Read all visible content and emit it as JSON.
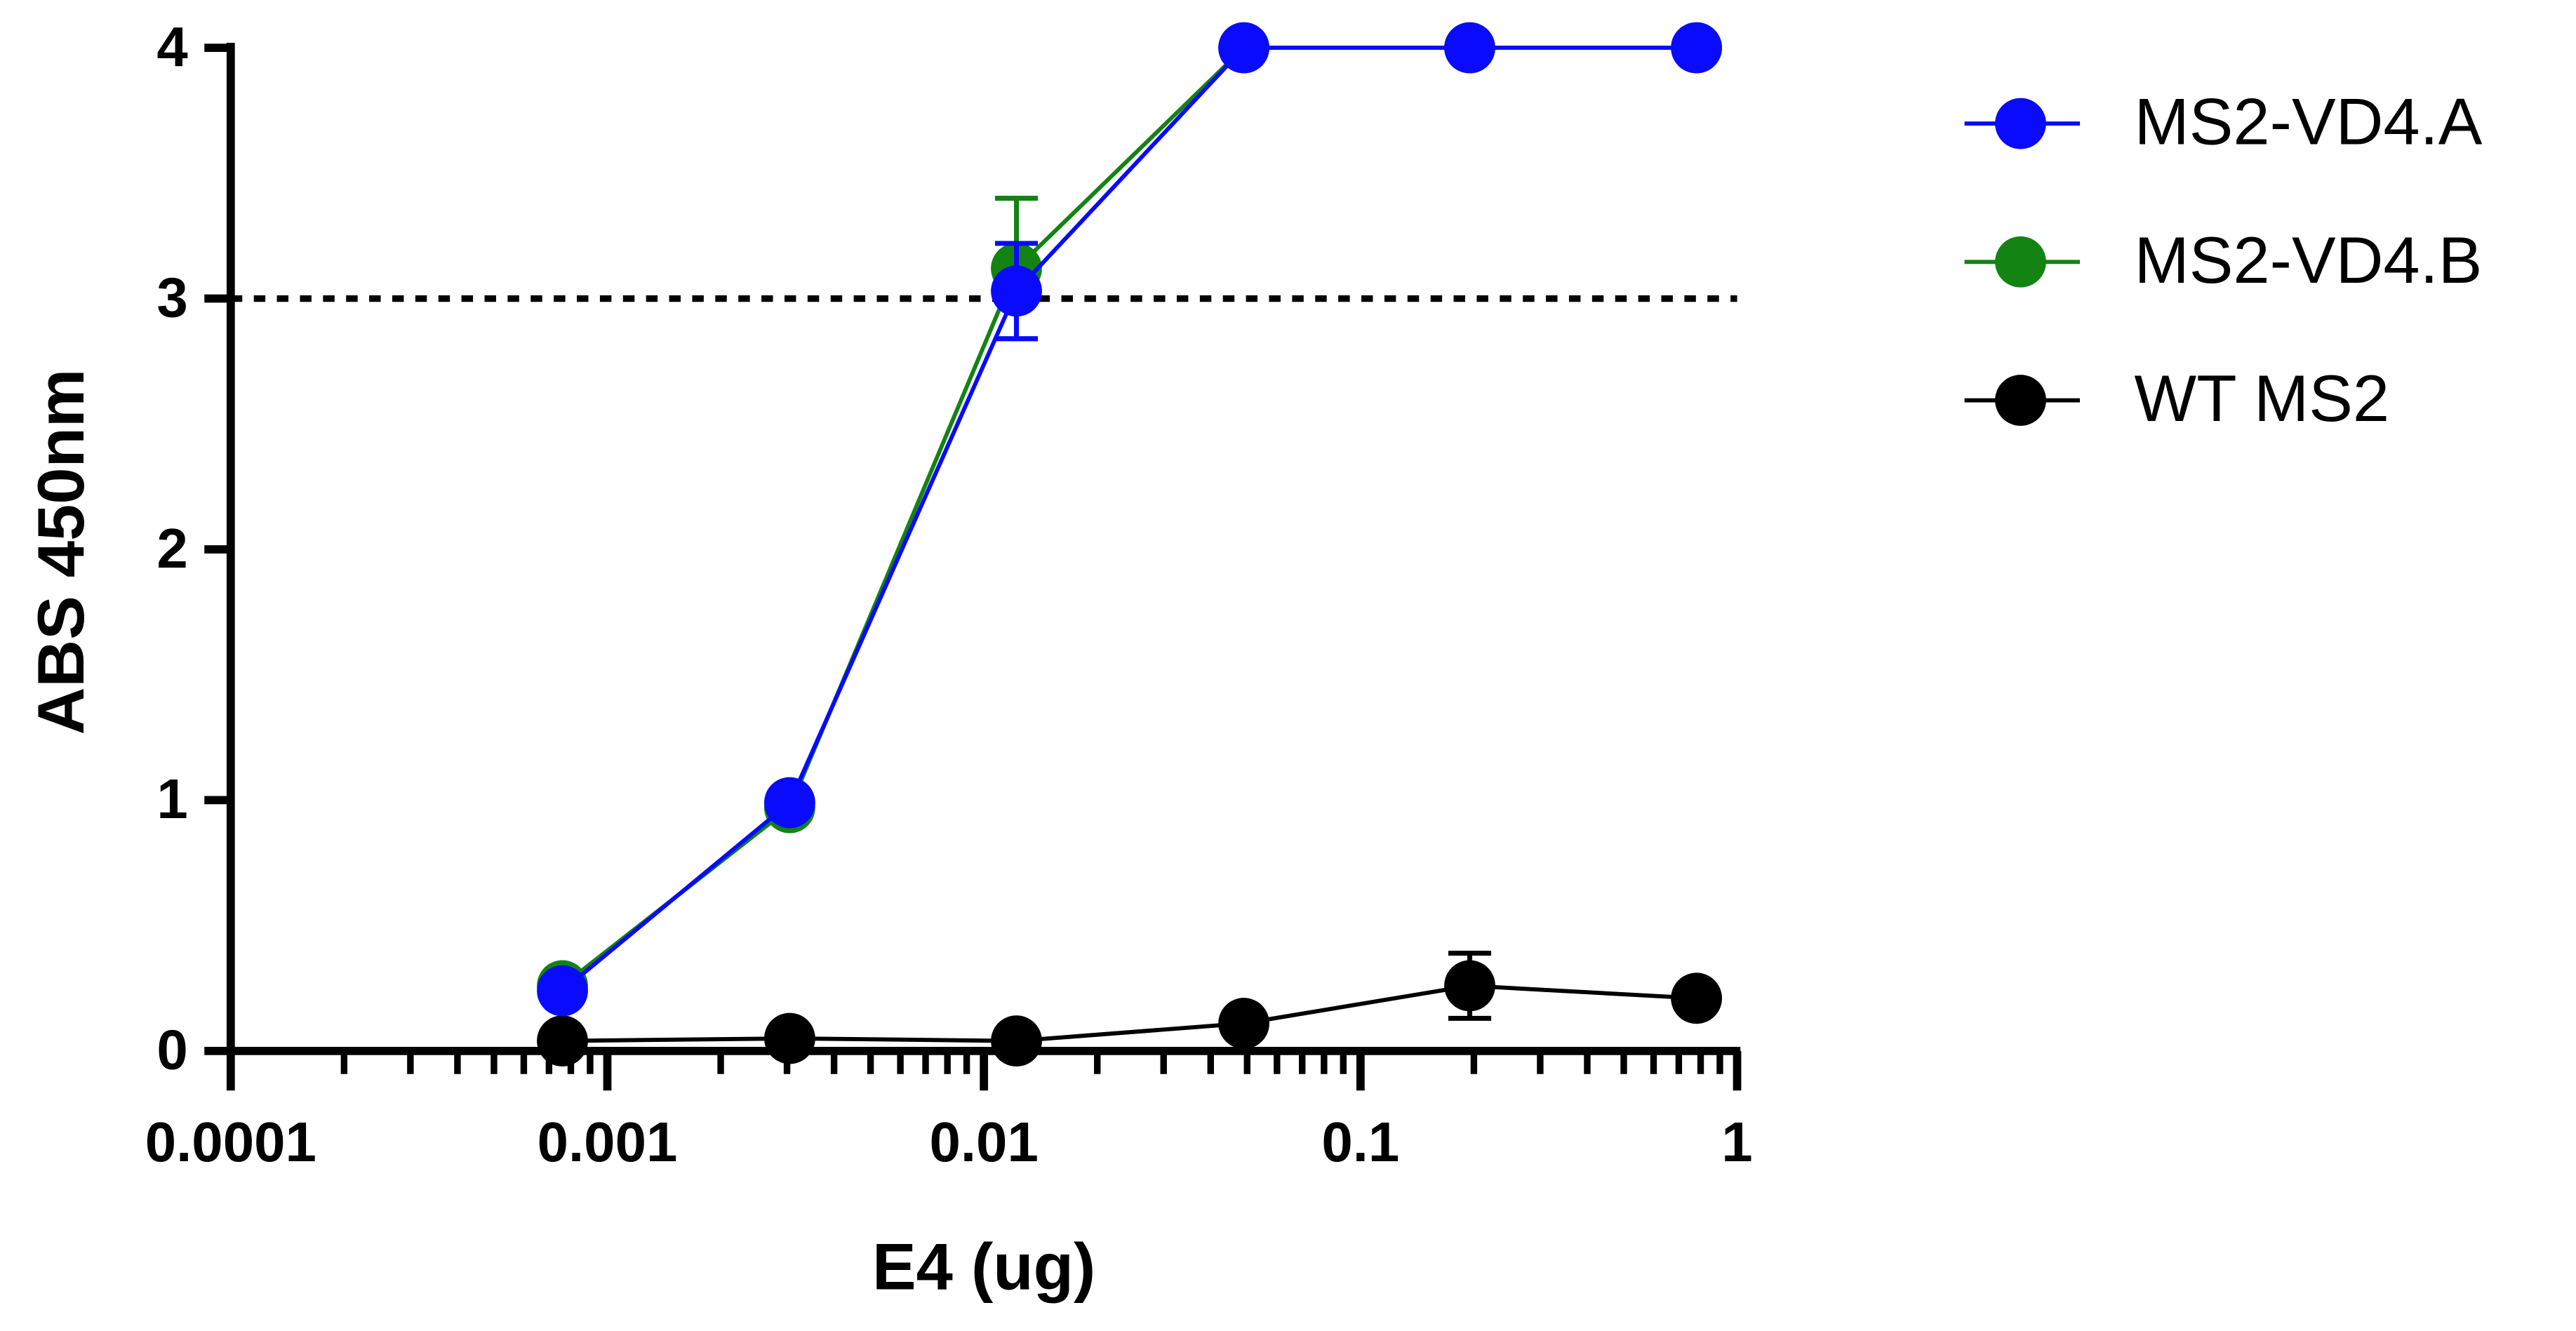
{
  "chart_data": {
    "type": "line",
    "x_label": "E4 (ug)",
    "y_label": "ABS 450nm",
    "x": [
      0.00076,
      0.00305,
      0.0122,
      0.049,
      0.195,
      0.78
    ],
    "xlog": true,
    "xlim": [
      0.0001,
      1
    ],
    "xticks": [
      0.0001,
      0.001,
      0.01,
      0.1,
      1
    ],
    "ylim": [
      0,
      4
    ],
    "yticks": [
      0,
      1,
      2,
      3,
      4
    ],
    "hline": 3,
    "series": [
      {
        "name": "MS2-VD4.A",
        "color": "#0a0aff",
        "values": [
          0.24,
          0.99,
          3.03,
          4.0,
          4.0,
          4.0
        ],
        "errors": [
          null,
          null,
          0.19,
          null,
          null,
          null
        ]
      },
      {
        "name": "MS2-VD4.B",
        "color": "#138313",
        "values": [
          0.26,
          0.97,
          3.12,
          4.0,
          4.0,
          4.0
        ],
        "errors": [
          null,
          null,
          0.28,
          null,
          null,
          null
        ]
      },
      {
        "name": "WT MS2",
        "color": "#000000",
        "values": [
          0.04,
          0.05,
          0.04,
          0.11,
          0.26,
          0.21
        ],
        "errors": [
          null,
          null,
          null,
          null,
          0.13,
          null
        ]
      }
    ]
  }
}
